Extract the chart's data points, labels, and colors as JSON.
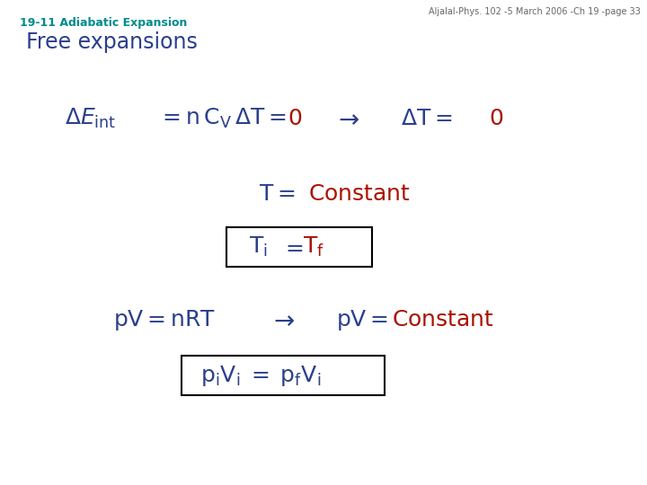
{
  "header_text": "Aljalal-Phys. 102 -5 March 2006 -Ch 19 -page 33",
  "subtitle": "19-11 Adiabatic Expansion",
  "title": "Free expansions",
  "subtitle_color": "#008B8B",
  "title_color": "#2B3F8C",
  "blue_color": "#2B3F8C",
  "red_color": "#AA1100",
  "header_color": "#666666",
  "bg_color": "#FFFFFF",
  "figsize": [
    7.2,
    5.4
  ],
  "dpi": 100
}
